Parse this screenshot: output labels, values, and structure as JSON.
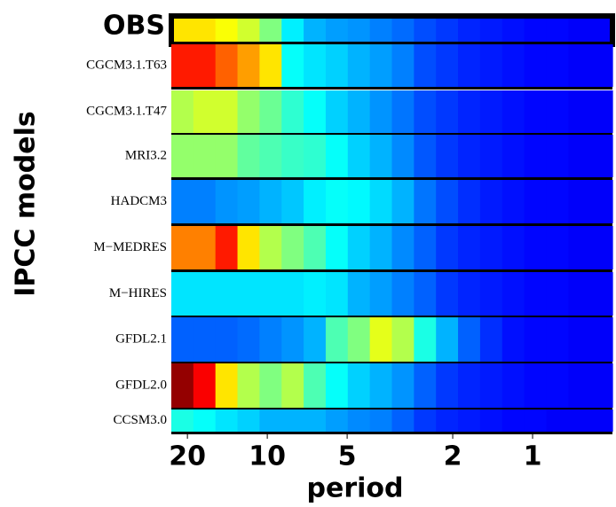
{
  "chart_data": {
    "type": "heatmap",
    "x_label": "period",
    "y_label": "IPCC models",
    "x_log": true,
    "xlim": [
      23,
      0.5
    ],
    "xticks": [
      20,
      10,
      5,
      2,
      1
    ],
    "colormap": "jet",
    "zlim": [
      0,
      1
    ],
    "rows": [
      {
        "name": "OBS",
        "values": [
          0.65,
          0.65,
          0.62,
          0.58,
          0.5,
          0.36,
          0.3,
          0.28,
          0.27,
          0.25,
          0.23,
          0.2,
          0.18,
          0.16,
          0.15,
          0.14,
          0.13,
          0.13,
          0.12,
          0.12
        ]
      },
      {
        "name": "CGCM3.1.T63",
        "values": [
          0.85,
          0.85,
          0.78,
          0.72,
          0.65,
          0.38,
          0.35,
          0.33,
          0.3,
          0.28,
          0.25,
          0.2,
          0.18,
          0.16,
          0.15,
          0.14,
          0.13,
          0.13,
          0.12,
          0.12
        ]
      },
      {
        "name": "CGCM3.1.T47",
        "values": [
          0.55,
          0.58,
          0.58,
          0.52,
          0.48,
          0.42,
          0.38,
          0.33,
          0.3,
          0.27,
          0.24,
          0.2,
          0.18,
          0.16,
          0.15,
          0.14,
          0.13,
          0.13,
          0.12,
          0.12
        ]
      },
      {
        "name": "MRI3.2",
        "values": [
          0.52,
          0.52,
          0.52,
          0.47,
          0.45,
          0.43,
          0.42,
          0.38,
          0.33,
          0.3,
          0.26,
          0.21,
          0.18,
          0.16,
          0.15,
          0.14,
          0.13,
          0.13,
          0.12,
          0.12
        ]
      },
      {
        "name": "HADCM3",
        "values": [
          0.25,
          0.25,
          0.27,
          0.28,
          0.3,
          0.32,
          0.36,
          0.38,
          0.37,
          0.34,
          0.3,
          0.24,
          0.2,
          0.17,
          0.15,
          0.14,
          0.13,
          0.13,
          0.12,
          0.12
        ]
      },
      {
        "name": "M−MEDRES",
        "values": [
          0.75,
          0.75,
          0.85,
          0.65,
          0.55,
          0.5,
          0.45,
          0.38,
          0.33,
          0.3,
          0.26,
          0.22,
          0.18,
          0.16,
          0.15,
          0.14,
          0.13,
          0.13,
          0.12,
          0.12
        ]
      },
      {
        "name": "M−HIRES",
        "values": [
          0.35,
          0.35,
          0.35,
          0.35,
          0.35,
          0.35,
          0.36,
          0.35,
          0.3,
          0.28,
          0.25,
          0.22,
          0.18,
          0.16,
          0.15,
          0.14,
          0.13,
          0.13,
          0.12,
          0.12
        ]
      },
      {
        "name": "GFDL2.1",
        "values": [
          0.22,
          0.22,
          0.22,
          0.23,
          0.25,
          0.27,
          0.3,
          0.45,
          0.5,
          0.6,
          0.55,
          0.4,
          0.3,
          0.22,
          0.17,
          0.14,
          0.13,
          0.13,
          0.12,
          0.12
        ]
      },
      {
        "name": "GFDL2.0",
        "values": [
          0.98,
          0.88,
          0.65,
          0.55,
          0.5,
          0.55,
          0.45,
          0.38,
          0.33,
          0.3,
          0.27,
          0.22,
          0.18,
          0.16,
          0.15,
          0.14,
          0.13,
          0.13,
          0.12,
          0.12
        ]
      },
      {
        "name": "CCSM3.0",
        "values": [
          0.4,
          0.38,
          0.35,
          0.33,
          0.3,
          0.3,
          0.3,
          0.28,
          0.26,
          0.25,
          0.22,
          0.18,
          0.16,
          0.15,
          0.14,
          0.13,
          0.13,
          0.12,
          0.12,
          0.12
        ]
      }
    ]
  }
}
